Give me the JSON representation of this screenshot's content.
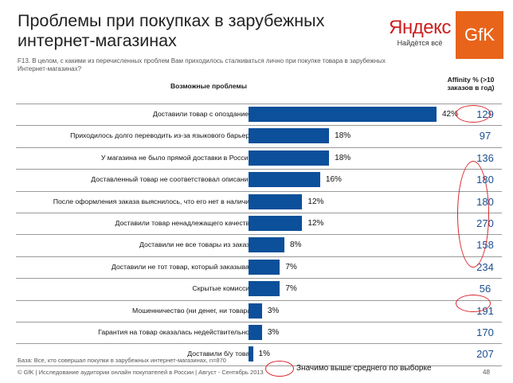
{
  "title": "Проблемы при покупках в зарубежных интернет-магазинах",
  "logos": {
    "yandex_word": "Яндекс",
    "yandex_tagline": "Найдётся всё",
    "gfk_word": "GfK"
  },
  "question": "F13. В целом, с какими из перечисленных проблем Вам приходилось сталкиваться лично при покупке товара в зарубежных Интернет-магазинах?",
  "headers": {
    "problems": "Возможные проблемы",
    "affinity": "Affinity % (>10 заказов в год)"
  },
  "colors": {
    "bar": "#0c4f9a",
    "circle": "#d8262c",
    "affinity_text": "#1b4f8f"
  },
  "chart_data": {
    "type": "bar",
    "orientation": "horizontal",
    "value_format": "percent",
    "categories": [
      "Доставили товар с опозданием",
      "Приходилось долго переводить из-за языкового барьера",
      "У магазина не было прямой доставки в Россию",
      "Доставленный товар не соответствовал описанию",
      "После оформления заказа выяснилось, что его нет в наличии",
      "Доставили товар ненадлежащего качества",
      "Доставили не все товары из заказа",
      "Доставили не тот товар, который заказывал",
      "Скрытые комиссии",
      "Мошенничество (ни денег, ни товара)",
      "Гарантия на товар оказалась недействительной",
      "Доставили б/у товар"
    ],
    "values": [
      42,
      18,
      18,
      16,
      12,
      12,
      8,
      7,
      7,
      3,
      3,
      1
    ],
    "value_labels": [
      "42%",
      "18%",
      "18%",
      "16%",
      "12%",
      "12%",
      "8%",
      "7%",
      "7%",
      "3%",
      "3%",
      "1%"
    ],
    "affinity": [
      "129",
      "97",
      "136",
      "180",
      "180",
      "270",
      "158",
      "234",
      "56",
      "191",
      "170",
      "207"
    ],
    "significant_rows": [
      0,
      2,
      3,
      4,
      5,
      6,
      7,
      9
    ],
    "xlim": [
      0,
      42
    ]
  },
  "base_note": "База: Все, кто совершал покупки в зарубежных интернет-магазинах, n=870",
  "footer": "© GfK | Исследование аудитории онлайн покупателей в России | Август - Сентябрь 2013",
  "legend_text": "Значимо выше среднего по выборке",
  "page_number": "48"
}
